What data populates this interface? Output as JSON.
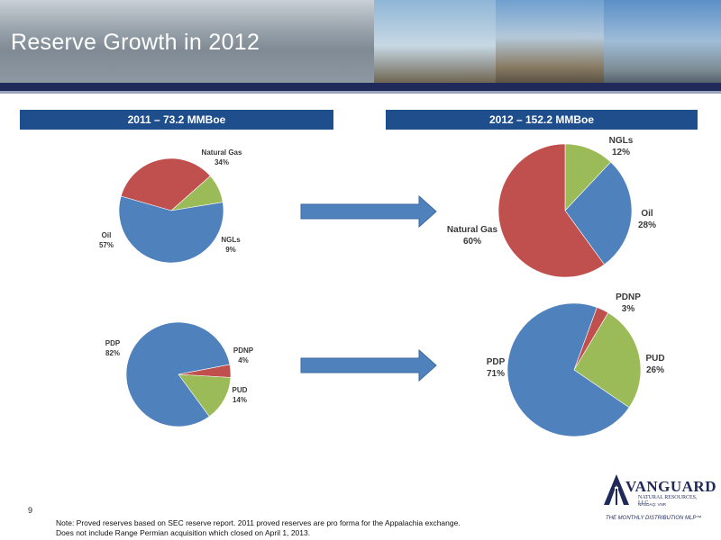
{
  "page": {
    "title": "Reserve Growth in 2012",
    "page_number": "9",
    "note_line1": "Note: Proved reserves based on SEC reserve report. 2011 proved reserves are pro forma for the Appalachia exchange.",
    "note_line2": "Does not include Range Permian acquisition which closed on April 1, 2013."
  },
  "columns": {
    "left_header": "2011 – 73.2 MMBoe",
    "right_header": "2012 – 152.2 MMBoe"
  },
  "logo": {
    "name": "VANGUARD",
    "subtitle": "NATURAL RESOURCES, LLC",
    "nasdaq": "NASDAQ: VNR",
    "tagline": "THE MONTHLY DISTRIBUTION MLP™"
  },
  "colors": {
    "blue": "#4f81bd",
    "red": "#c0504d",
    "green": "#9bbb59",
    "arrow": "#4f81bd",
    "header_bar": "#1f4e8c"
  },
  "chart_data": [
    {
      "type": "pie",
      "title": "2011 – 73.2 MMBoe",
      "slices": [
        {
          "label": "Natural Gas",
          "value": 34,
          "display": "34%",
          "color": "#c0504d"
        },
        {
          "label": "NGLs",
          "value": 9,
          "display": "9%",
          "color": "#9bbb59"
        },
        {
          "label": "Oil",
          "value": 57,
          "display": "57%",
          "color": "#4f81bd"
        }
      ]
    },
    {
      "type": "pie",
      "title": "2012 – 152.2 MMBoe",
      "slices": [
        {
          "label": "NGLs",
          "value": 12,
          "display": "12%",
          "color": "#9bbb59"
        },
        {
          "label": "Oil",
          "value": 28,
          "display": "28%",
          "color": "#4f81bd"
        },
        {
          "label": "Natural Gas",
          "value": 60,
          "display": "60%",
          "color": "#c0504d"
        }
      ]
    },
    {
      "type": "pie",
      "title": "2011 – 73.2 MMBoe",
      "slices": [
        {
          "label": "PDNP",
          "value": 4,
          "display": "4%",
          "color": "#c0504d"
        },
        {
          "label": "PUD",
          "value": 14,
          "display": "14%",
          "color": "#9bbb59"
        },
        {
          "label": "PDP",
          "value": 82,
          "display": "82%",
          "color": "#4f81bd"
        }
      ]
    },
    {
      "type": "pie",
      "title": "2012 – 152.2 MMBoe",
      "slices": [
        {
          "label": "PDNP",
          "value": 3,
          "display": "3%",
          "color": "#c0504d"
        },
        {
          "label": "PUD",
          "value": 26,
          "display": "26%",
          "color": "#9bbb59"
        },
        {
          "label": "PDP",
          "value": 71,
          "display": "71%",
          "color": "#4f81bd"
        }
      ]
    }
  ]
}
